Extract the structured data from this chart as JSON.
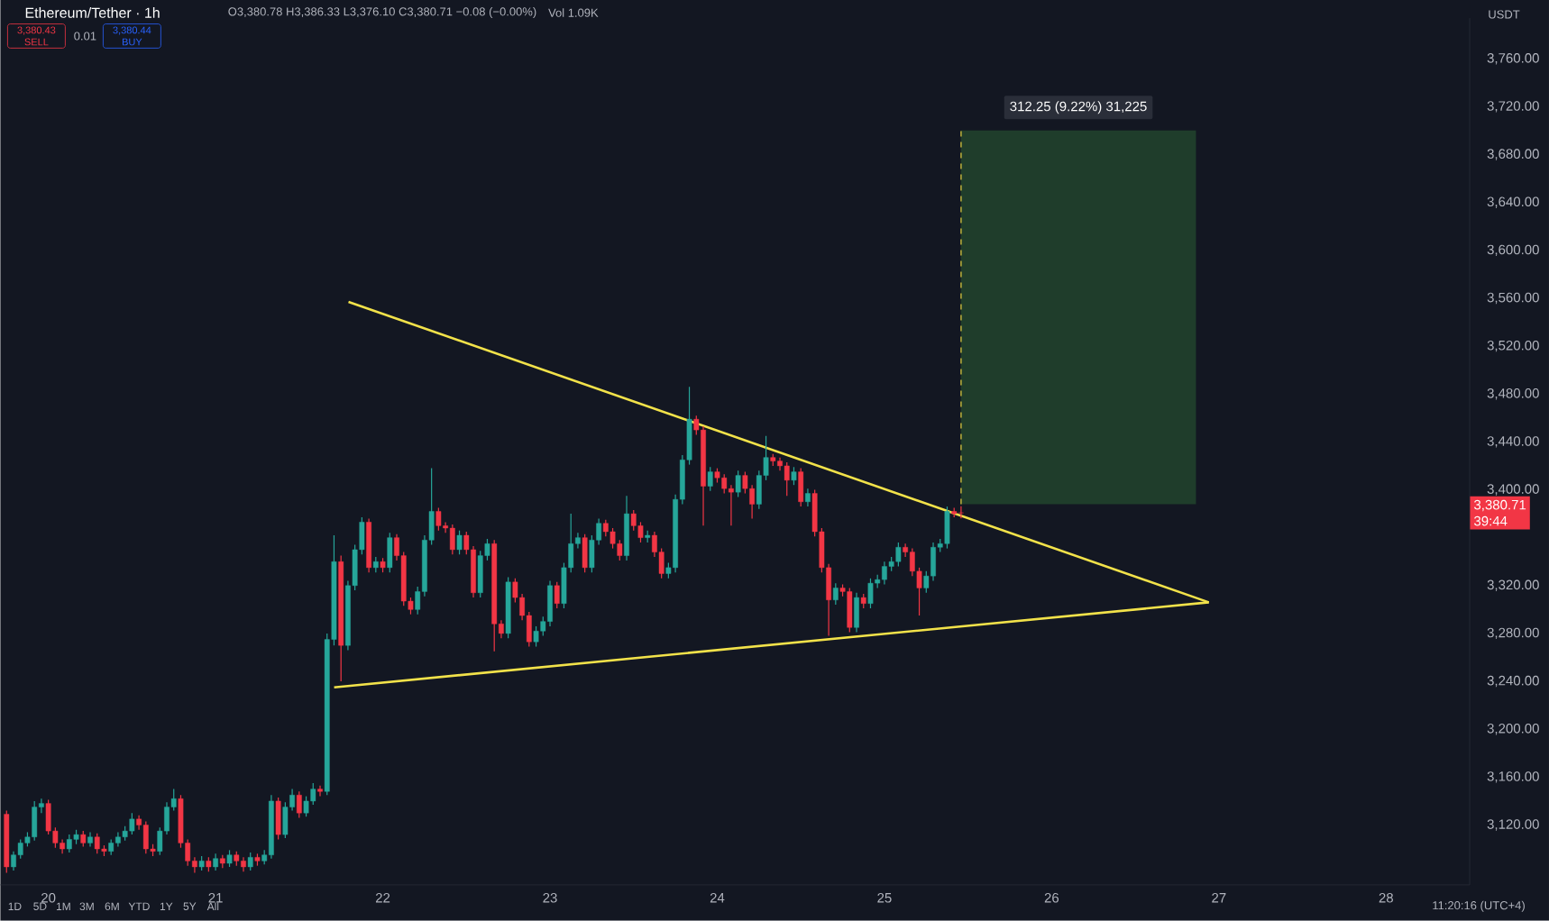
{
  "chart_data": {
    "type": "candlestick",
    "title": "Ethereum/Tether · 1h",
    "x": [
      19.75,
      19.7917,
      19.8333,
      19.875,
      19.9167,
      19.9583,
      20,
      20.0417,
      20.0833,
      20.125,
      20.1667,
      20.2083,
      20.25,
      20.2917,
      20.3333,
      20.375,
      20.4167,
      20.4583,
      20.5,
      20.5417,
      20.5833,
      20.625,
      20.6667,
      20.7083,
      20.75,
      20.7917,
      20.8333,
      20.875,
      20.9167,
      20.9583,
      21,
      21.0417,
      21.0833,
      21.125,
      21.1667,
      21.2083,
      21.25,
      21.2917,
      21.3333,
      21.375,
      21.4167,
      21.4583,
      21.5,
      21.5417,
      21.5833,
      21.625,
      21.6667,
      21.7083,
      21.75,
      21.7917,
      21.8333,
      21.875,
      21.9167,
      21.9583,
      22,
      22.0417,
      22.0833,
      22.125,
      22.1667,
      22.2083,
      22.25,
      22.2917,
      22.3333,
      22.375,
      22.4167,
      22.4583,
      22.5,
      22.5417,
      22.5833,
      22.625,
      22.6667,
      22.7083,
      22.75,
      22.7917,
      22.8333,
      22.875,
      22.9167,
      22.9583,
      23,
      23.0417,
      23.0833,
      23.125,
      23.1667,
      23.2083,
      23.25,
      23.2917,
      23.3333,
      23.375,
      23.4167,
      23.4583,
      23.5,
      23.5417,
      23.5833,
      23.625,
      23.6667,
      23.7083,
      23.75,
      23.7917,
      23.8333,
      23.875,
      23.9167,
      23.9583,
      24,
      24.0417,
      24.0833,
      24.125,
      24.1667,
      24.2083,
      24.25,
      24.2917,
      24.3333,
      24.375,
      24.4167,
      24.4583,
      24.5,
      24.5417,
      24.5833,
      24.625,
      24.6667,
      24.7083,
      24.75,
      24.7917,
      24.8333,
      24.875,
      24.9167,
      24.9583,
      25,
      25.0417,
      25.0833,
      25.125,
      25.1667,
      25.2083,
      25.25,
      25.2917,
      25.3333,
      25.375,
      25.4167,
      25.4583
    ],
    "ohlc": [
      [
        3129,
        3132,
        3080,
        3085
      ],
      [
        3085,
        3098,
        3082,
        3095
      ],
      [
        3095,
        3108,
        3092,
        3105
      ],
      [
        3105,
        3114,
        3102,
        3110
      ],
      [
        3110,
        3140,
        3107,
        3135
      ],
      [
        3135,
        3142,
        3130,
        3138
      ],
      [
        3138,
        3141,
        3112,
        3115
      ],
      [
        3115,
        3118,
        3101,
        3105
      ],
      [
        3105,
        3108,
        3096,
        3100
      ],
      [
        3100,
        3112,
        3097,
        3108
      ],
      [
        3108,
        3116,
        3104,
        3112
      ],
      [
        3112,
        3115,
        3102,
        3105
      ],
      [
        3105,
        3114,
        3102,
        3110
      ],
      [
        3110,
        3113,
        3096,
        3100
      ],
      [
        3100,
        3103,
        3094,
        3098
      ],
      [
        3098,
        3108,
        3095,
        3105
      ],
      [
        3105,
        3114,
        3102,
        3110
      ],
      [
        3110,
        3119,
        3107,
        3115
      ],
      [
        3115,
        3130,
        3112,
        3125
      ],
      [
        3125,
        3128,
        3116,
        3120
      ],
      [
        3120,
        3123,
        3096,
        3100
      ],
      [
        3100,
        3104,
        3094,
        3098
      ],
      [
        3098,
        3118,
        3095,
        3115
      ],
      [
        3115,
        3139,
        3112,
        3135
      ],
      [
        3135,
        3150,
        3132,
        3142
      ],
      [
        3142,
        3145,
        3101,
        3105
      ],
      [
        3105,
        3108,
        3086,
        3090
      ],
      [
        3090,
        3093,
        3080,
        3085
      ],
      [
        3085,
        3094,
        3082,
        3090
      ],
      [
        3090,
        3093,
        3081,
        3085
      ],
      [
        3085,
        3096,
        3082,
        3092
      ],
      [
        3092,
        3095,
        3084,
        3088
      ],
      [
        3088,
        3099,
        3085,
        3095
      ],
      [
        3095,
        3098,
        3086,
        3090
      ],
      [
        3090,
        3093,
        3081,
        3085
      ],
      [
        3085,
        3097,
        3082,
        3093
      ],
      [
        3093,
        3096,
        3086,
        3090
      ],
      [
        3090,
        3099,
        3087,
        3095
      ],
      [
        3095,
        3145,
        3092,
        3140
      ],
      [
        3140,
        3143,
        3108,
        3112
      ],
      [
        3112,
        3139,
        3109,
        3135
      ],
      [
        3135,
        3150,
        3132,
        3145
      ],
      [
        3145,
        3148,
        3126,
        3130
      ],
      [
        3130,
        3144,
        3127,
        3140
      ],
      [
        3140,
        3155,
        3137,
        3150
      ],
      [
        3150,
        3153,
        3144,
        3148
      ],
      [
        3148,
        3280,
        3145,
        3275
      ],
      [
        3275,
        3362,
        3270,
        3340
      ],
      [
        3340,
        3345,
        3240,
        3270
      ],
      [
        3270,
        3324,
        3266,
        3320
      ],
      [
        3320,
        3354,
        3316,
        3350
      ],
      [
        3350,
        3377,
        3346,
        3373
      ],
      [
        3373,
        3376,
        3331,
        3335
      ],
      [
        3335,
        3344,
        3331,
        3340
      ],
      [
        3340,
        3343,
        3331,
        3335
      ],
      [
        3335,
        3364,
        3331,
        3360
      ],
      [
        3360,
        3363,
        3341,
        3345
      ],
      [
        3345,
        3348,
        3303,
        3307
      ],
      [
        3307,
        3310,
        3296,
        3300
      ],
      [
        3300,
        3319,
        3296,
        3315
      ],
      [
        3315,
        3362,
        3311,
        3358
      ],
      [
        3358,
        3418,
        3354,
        3382
      ],
      [
        3382,
        3385,
        3366,
        3370
      ],
      [
        3370,
        3373,
        3364,
        3368
      ],
      [
        3368,
        3371,
        3346,
        3350
      ],
      [
        3350,
        3366,
        3346,
        3362
      ],
      [
        3362,
        3365,
        3346,
        3350
      ],
      [
        3350,
        3353,
        3310,
        3314
      ],
      [
        3314,
        3349,
        3310,
        3345
      ],
      [
        3345,
        3359,
        3341,
        3355
      ],
      [
        3355,
        3358,
        3265,
        3288
      ],
      [
        3288,
        3291,
        3276,
        3280
      ],
      [
        3280,
        3327,
        3276,
        3323
      ],
      [
        3323,
        3326,
        3306,
        3310
      ],
      [
        3310,
        3313,
        3291,
        3295
      ],
      [
        3295,
        3298,
        3269,
        3273
      ],
      [
        3273,
        3286,
        3269,
        3282
      ],
      [
        3282,
        3294,
        3278,
        3290
      ],
      [
        3290,
        3324,
        3286,
        3320
      ],
      [
        3320,
        3323,
        3301,
        3305
      ],
      [
        3305,
        3339,
        3301,
        3335
      ],
      [
        3335,
        3380,
        3331,
        3355
      ],
      [
        3355,
        3364,
        3351,
        3360
      ],
      [
        3360,
        3363,
        3331,
        3335
      ],
      [
        3335,
        3362,
        3331,
        3358
      ],
      [
        3358,
        3376,
        3354,
        3372
      ],
      [
        3372,
        3375,
        3361,
        3365
      ],
      [
        3365,
        3368,
        3351,
        3355
      ],
      [
        3355,
        3358,
        3341,
        3345
      ],
      [
        3345,
        3395,
        3341,
        3380
      ],
      [
        3380,
        3383,
        3366,
        3370
      ],
      [
        3370,
        3373,
        3356,
        3360
      ],
      [
        3360,
        3366,
        3356,
        3362
      ],
      [
        3362,
        3365,
        3344,
        3348
      ],
      [
        3348,
        3351,
        3326,
        3330
      ],
      [
        3330,
        3339,
        3326,
        3335
      ],
      [
        3335,
        3396,
        3331,
        3392
      ],
      [
        3392,
        3429,
        3388,
        3425
      ],
      [
        3425,
        3486,
        3421,
        3459
      ],
      [
        3459,
        3462,
        3446,
        3450
      ],
      [
        3450,
        3453,
        3370,
        3403
      ],
      [
        3403,
        3419,
        3399,
        3415
      ],
      [
        3415,
        3418,
        3406,
        3410
      ],
      [
        3410,
        3413,
        3397,
        3401
      ],
      [
        3401,
        3404,
        3370,
        3398
      ],
      [
        3398,
        3416,
        3394,
        3412
      ],
      [
        3412,
        3415,
        3397,
        3401
      ],
      [
        3401,
        3404,
        3376,
        3388
      ],
      [
        3388,
        3416,
        3384,
        3412
      ],
      [
        3412,
        3445,
        3408,
        3427
      ],
      [
        3427,
        3430,
        3420,
        3424
      ],
      [
        3424,
        3427,
        3416,
        3420
      ],
      [
        3420,
        3423,
        3395,
        3408
      ],
      [
        3408,
        3419,
        3404,
        3415
      ],
      [
        3415,
        3418,
        3386,
        3390
      ],
      [
        3390,
        3401,
        3386,
        3397
      ],
      [
        3397,
        3400,
        3361,
        3365
      ],
      [
        3365,
        3368,
        3331,
        3335
      ],
      [
        3335,
        3338,
        3278,
        3308
      ],
      [
        3308,
        3322,
        3304,
        3318
      ],
      [
        3318,
        3321,
        3311,
        3315
      ],
      [
        3315,
        3318,
        3281,
        3285
      ],
      [
        3285,
        3314,
        3281,
        3310
      ],
      [
        3310,
        3313,
        3301,
        3305
      ],
      [
        3305,
        3326,
        3301,
        3322
      ],
      [
        3322,
        3329,
        3318,
        3325
      ],
      [
        3325,
        3340,
        3321,
        3336
      ],
      [
        3336,
        3344,
        3332,
        3340
      ],
      [
        3340,
        3356,
        3336,
        3352
      ],
      [
        3352,
        3355,
        3344,
        3348
      ],
      [
        3348,
        3351,
        3328,
        3332
      ],
      [
        3332,
        3335,
        3295,
        3318
      ],
      [
        3318,
        3332,
        3314,
        3328
      ],
      [
        3328,
        3356,
        3324,
        3352
      ],
      [
        3352,
        3359,
        3348,
        3355
      ],
      [
        3355,
        3386,
        3351,
        3382
      ],
      [
        3382,
        3385,
        3377,
        3380
      ],
      [
        3380.78,
        3386.33,
        3376.1,
        3380.71
      ]
    ],
    "colors": [
      "#f23645",
      "#26a69a",
      "#26a69a",
      "#26a69a",
      "#26a69a",
      "#26a69a",
      "#f23645",
      "#f23645",
      "#f23645",
      "#26a69a",
      "#26a69a",
      "#f23645",
      "#26a69a",
      "#f23645",
      "#f23645",
      "#26a69a",
      "#26a69a",
      "#26a69a",
      "#26a69a",
      "#f23645",
      "#f23645",
      "#f23645",
      "#26a69a",
      "#26a69a",
      "#26a69a",
      "#f23645",
      "#f23645",
      "#f23645",
      "#26a69a",
      "#f23645",
      "#26a69a",
      "#f23645",
      "#26a69a",
      "#f23645",
      "#f23645",
      "#26a69a",
      "#f23645",
      "#26a69a",
      "#26a69a",
      "#f23645",
      "#26a69a",
      "#26a69a",
      "#f23645",
      "#26a69a",
      "#26a69a",
      "#f23645",
      "#26a69a",
      "#26a69a",
      "#f23645",
      "#26a69a",
      "#26a69a",
      "#26a69a",
      "#f23645",
      "#26a69a",
      "#f23645",
      "#26a69a",
      "#f23645",
      "#f23645",
      "#f23645",
      "#26a69a",
      "#26a69a",
      "#26a69a",
      "#f23645",
      "#f23645",
      "#f23645",
      "#26a69a",
      "#f23645",
      "#f23645",
      "#26a69a",
      "#26a69a",
      "#f23645",
      "#f23645",
      "#26a69a",
      "#f23645",
      "#f23645",
      "#f23645",
      "#26a69a",
      "#26a69a",
      "#26a69a",
      "#f23645",
      "#26a69a",
      "#26a69a",
      "#26a69a",
      "#f23645",
      "#26a69a",
      "#26a69a",
      "#f23645",
      "#f23645",
      "#f23645",
      "#26a69a",
      "#f23645",
      "#f23645",
      "#26a69a",
      "#f23645",
      "#f23645",
      "#26a69a",
      "#26a69a",
      "#26a69a",
      "#26a69a",
      "#f23645",
      "#f23645",
      "#26a69a",
      "#f23645",
      "#f23645",
      "#f23645",
      "#26a69a",
      "#f23645",
      "#f23645",
      "#26a69a",
      "#26a69a",
      "#f23645",
      "#f23645",
      "#f23645",
      "#26a69a",
      "#f23645",
      "#26a69a",
      "#f23645",
      "#f23645",
      "#f23645",
      "#26a69a",
      "#f23645",
      "#f23645",
      "#26a69a",
      "#f23645",
      "#26a69a",
      "#26a69a",
      "#26a69a",
      "#26a69a",
      "#26a69a",
      "#f23645",
      "#f23645",
      "#f23645",
      "#26a69a",
      "#26a69a",
      "#26a69a",
      "#26a69a",
      "#f23645",
      "#f23645"
    ],
    "series": [
      {
        "type": "line",
        "color": "#f2e24a",
        "x": [
          21.795,
          26.94
        ],
        "values": [
          3557,
          3306
        ]
      },
      {
        "type": "line",
        "color": "#f2e24a",
        "x": [
          21.709,
          26.94
        ],
        "values": [
          3235,
          3306
        ]
      },
      {
        "type": "bar",
        "color": "#1f3d2b",
        "x": [
          26.16
        ],
        "base": [
          3388
        ],
        "values": [
          312.25
        ]
      },
      {
        "type": "line",
        "color": "#c9b83c",
        "line_style": "dashed",
        "x": [
          25.4583,
          25.4583
        ],
        "values": [
          3388,
          3700
        ]
      }
    ],
    "xlim": [
      19.713,
      28.5
    ],
    "xticks": [
      20,
      21,
      22,
      23,
      24,
      25,
      26,
      27,
      28
    ],
    "ylim": [
      3070,
      3794
    ],
    "yticks": [
      {
        "value": 3120,
        "label": "3,120.00"
      },
      {
        "value": 3160,
        "label": "3,160.00"
      },
      {
        "value": 3200,
        "label": "3,200.00"
      },
      {
        "value": 3240,
        "label": "3,240.00"
      },
      {
        "value": 3280,
        "label": "3,280.00"
      },
      {
        "value": 3320,
        "label": "3,320.00"
      },
      {
        "value": 3400,
        "label": "3,400.00"
      },
      {
        "value": 3440,
        "label": "3,440.00"
      },
      {
        "value": 3480,
        "label": "3,480.00"
      },
      {
        "value": 3520,
        "label": "3,520.00"
      },
      {
        "value": 3560,
        "label": "3,560.00"
      },
      {
        "value": 3600,
        "label": "3,600.00"
      },
      {
        "value": 3640,
        "label": "3,640.00"
      },
      {
        "value": 3680,
        "label": "3,680.00"
      },
      {
        "value": 3720,
        "label": "3,720.00"
      },
      {
        "value": 3760,
        "label": "3,760.00"
      }
    ],
    "annotations": [
      "O3,380.78 H3,386.33 L3,376.10 C3,380.71 −0.08 (−0.00%)",
      "Vol 1.09K",
      "3,380.43",
      "SELL",
      "0.01",
      "3,380.44",
      "BUY",
      "USDT",
      "3,380.71",
      "39:44",
      "1D",
      "5D",
      "1M",
      "3M",
      "6M",
      "YTD",
      "1Y",
      "5Y",
      "All",
      "11:20:16 (UTC+4)",
      "312.25 (9.22%) 31,225"
    ]
  }
}
